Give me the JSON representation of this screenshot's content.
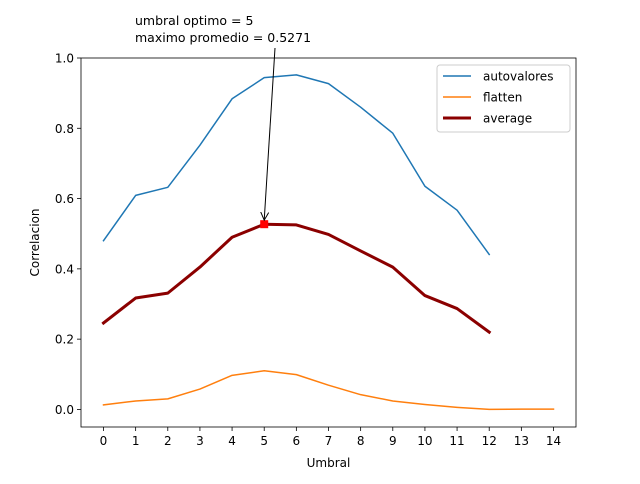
{
  "chart_data": {
    "type": "line",
    "title": "",
    "xlabel": "Umbral",
    "ylabel": "Correlacion",
    "xlim": [
      -0.7,
      14.7
    ],
    "ylim": [
      -0.05,
      1.0
    ],
    "xticks": [
      "0",
      "1",
      "2",
      "3",
      "4",
      "5",
      "6",
      "7",
      "8",
      "9",
      "10",
      "11",
      "12",
      "13",
      "14"
    ],
    "yticks": [
      "0.0",
      "0.2",
      "0.4",
      "0.6",
      "0.8",
      "1.0"
    ],
    "grid": false,
    "legend_position": "upper-right",
    "series": [
      {
        "name": "autovalores",
        "color": "#1f77b4",
        "x": [
          0,
          1,
          2,
          3,
          4,
          5,
          6,
          7,
          8,
          9,
          10,
          11,
          12
        ],
        "y": [
          0.48,
          0.609,
          0.632,
          0.752,
          0.884,
          0.944,
          0.952,
          0.927,
          0.86,
          0.786,
          0.635,
          0.567,
          0.441
        ]
      },
      {
        "name": "flatten",
        "color": "#ff7f0e",
        "x": [
          0,
          1,
          2,
          3,
          4,
          5,
          6,
          7,
          8,
          9,
          10,
          11,
          12,
          13,
          14
        ],
        "y": [
          0.013,
          0.024,
          0.03,
          0.058,
          0.097,
          0.11,
          0.099,
          0.069,
          0.042,
          0.024,
          0.014,
          0.006,
          0.0,
          0.001,
          0.001
        ]
      },
      {
        "name": "average",
        "color": "#8b0000",
        "x": [
          0,
          1,
          2,
          3,
          4,
          5,
          6,
          7,
          8,
          9,
          10,
          11,
          12
        ],
        "y": [
          0.246,
          0.317,
          0.331,
          0.405,
          0.49,
          0.527,
          0.525,
          0.498,
          0.451,
          0.405,
          0.324,
          0.287,
          0.22
        ]
      }
    ],
    "marker": {
      "x": 5,
      "y": 0.5271,
      "color": "#ff0000"
    },
    "annotation": {
      "line1": "umbral optimo = 5",
      "line2": "maximo promedio = 0.5271",
      "target_x": 5,
      "target_y": 0.5271
    }
  }
}
